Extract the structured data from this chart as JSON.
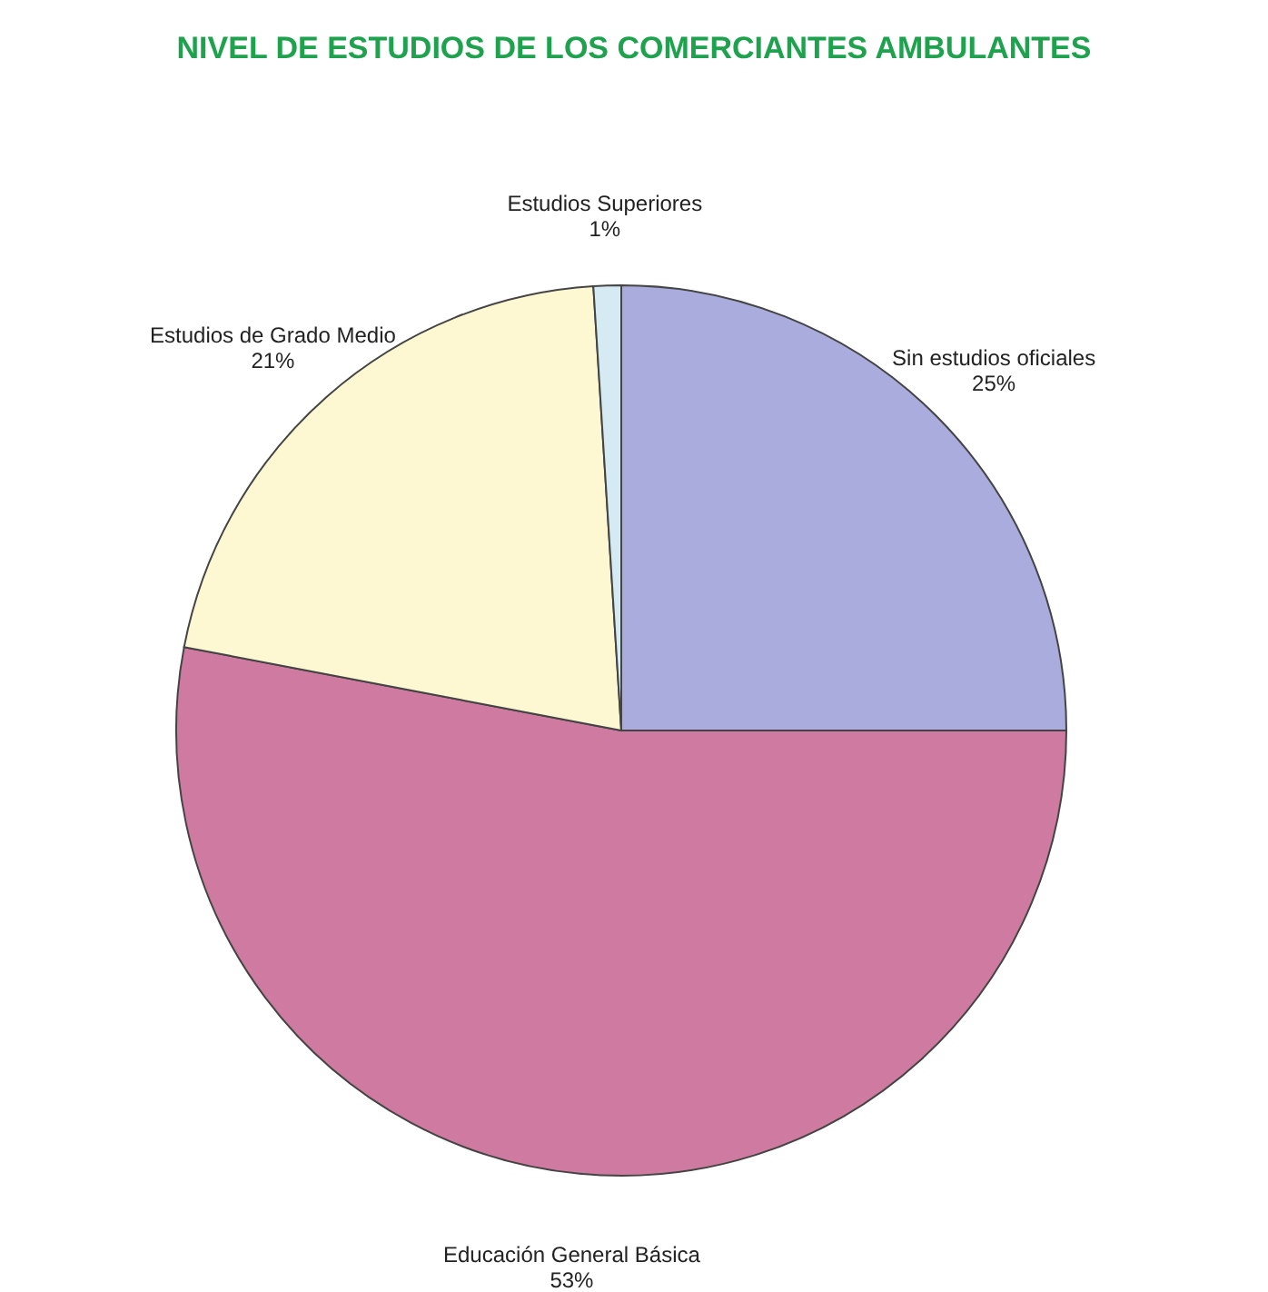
{
  "chart_data": {
    "type": "pie",
    "title": "NIVEL DE ESTUDIOS DE LOS COMERCIANTES AMBULANTES",
    "categories": [
      "Sin estudios oficiales",
      "Educación General Básica",
      "Estudios de Grado Medio",
      "Estudios Superiores"
    ],
    "values": [
      25,
      53,
      21,
      1
    ],
    "value_labels": [
      "25%",
      "53%",
      "21%",
      "1%"
    ],
    "colors": [
      "#a9acdc",
      "#cf7aa0",
      "#fdf8d2",
      "#d6eaf4"
    ]
  }
}
